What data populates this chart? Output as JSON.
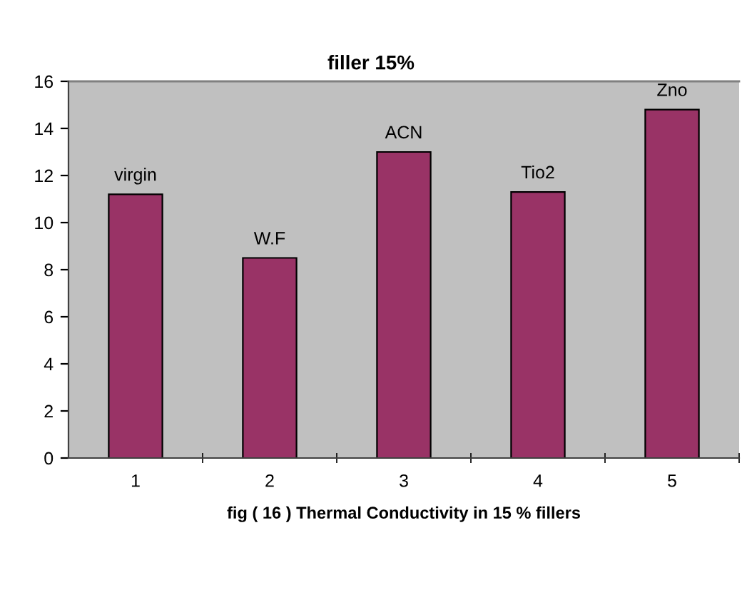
{
  "chart_data": {
    "type": "bar",
    "title": "filler 15%",
    "xlabel": "fig ( 16 ) Thermal Conductivity in 15 % fillers",
    "categories": [
      "1",
      "2",
      "3",
      "4",
      "5"
    ],
    "values": [
      11.2,
      8.5,
      13.0,
      11.3,
      14.8
    ],
    "color": "#993366",
    "ylim": [
      0,
      16
    ],
    "yticks": [
      0,
      2,
      4,
      6,
      8,
      10,
      12,
      14,
      16
    ],
    "grid": false,
    "legend": false,
    "annotations": [
      {
        "text": "virgin",
        "x": "1",
        "y": 11.2
      },
      {
        "text": "W.F",
        "x": "2",
        "y": 8.5
      },
      {
        "text": "ACN",
        "x": "3",
        "y": 13.0
      },
      {
        "text": "Tio2",
        "x": "4",
        "y": 11.3
      },
      {
        "text": "Zno",
        "x": "5",
        "y": 14.8
      }
    ]
  }
}
